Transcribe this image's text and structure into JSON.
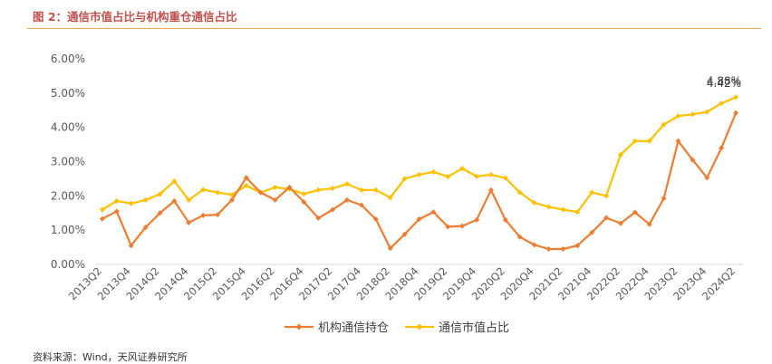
{
  "figure": {
    "title": "图 2：通信市值占比与机构重仓通信占比",
    "source": "资料来源：Wind，天风证券研究所"
  },
  "colors": {
    "title": "#c0504d",
    "rule": "#f0a848",
    "holdings_series": "#ed7d31",
    "market_cap_series": "#ffc000",
    "axis_text": "#595959"
  },
  "chart_data": {
    "type": "line",
    "title": "",
    "xlabel": "",
    "ylabel": "",
    "ylim": [
      0,
      0.06
    ],
    "yticks": [
      "0.00%",
      "1.00%",
      "2.00%",
      "3.00%",
      "4.00%",
      "5.00%",
      "6.00%"
    ],
    "grid": false,
    "legend_position": "bottom",
    "x": [
      "2013Q2",
      "2013Q3",
      "2013Q4",
      "2014Q1",
      "2014Q2",
      "2014Q3",
      "2014Q4",
      "2015Q1",
      "2015Q2",
      "2015Q3",
      "2015Q4",
      "2016Q1",
      "2016Q2",
      "2016Q3",
      "2016Q4",
      "2017Q1",
      "2017Q2",
      "2017Q3",
      "2017Q4",
      "2018Q1",
      "2018Q2",
      "2018Q3",
      "2018Q4",
      "2019Q1",
      "2019Q2",
      "2019Q3",
      "2019Q4",
      "2020Q1",
      "2020Q2",
      "2020Q3",
      "2020Q4",
      "2021Q1",
      "2021Q2",
      "2021Q3",
      "2021Q4",
      "2022Q1",
      "2022Q2",
      "2022Q3",
      "2022Q4",
      "2023Q1",
      "2023Q2",
      "2023Q3",
      "2023Q4",
      "2024Q1",
      "2024Q2"
    ],
    "xticks_shown": [
      "2013Q2",
      "2013Q4",
      "2014Q2",
      "2014Q4",
      "2015Q2",
      "2015Q4",
      "2016Q2",
      "2016Q4",
      "2017Q2",
      "2017Q4",
      "2018Q2",
      "2018Q4",
      "2019Q2",
      "2019Q4",
      "2020Q2",
      "2020Q4",
      "2021Q2",
      "2021Q4",
      "2022Q2",
      "2022Q4",
      "2023Q2",
      "2023Q4",
      "2024Q2"
    ],
    "series": [
      {
        "name": "机构通信持仓",
        "marker": "diamond",
        "values": [
          0.0133,
          0.0155,
          0.0055,
          0.0108,
          0.015,
          0.0185,
          0.0122,
          0.0143,
          0.0145,
          0.0188,
          0.0253,
          0.021,
          0.0188,
          0.0225,
          0.0182,
          0.0135,
          0.016,
          0.0188,
          0.0173,
          0.0132,
          0.0047,
          0.0088,
          0.0132,
          0.0153,
          0.011,
          0.0112,
          0.013,
          0.0217,
          0.013,
          0.008,
          0.0057,
          0.0045,
          0.0045,
          0.0055,
          0.0093,
          0.0136,
          0.012,
          0.0152,
          0.0117,
          0.0193,
          0.036,
          0.0305,
          0.0253,
          0.034,
          0.0442
        ]
      },
      {
        "name": "通信市值占比",
        "marker": "diamond",
        "values": [
          0.016,
          0.0185,
          0.0178,
          0.0188,
          0.0205,
          0.0243,
          0.0188,
          0.0218,
          0.021,
          0.0203,
          0.023,
          0.021,
          0.0225,
          0.022,
          0.0206,
          0.0217,
          0.0222,
          0.0235,
          0.0217,
          0.0217,
          0.0195,
          0.025,
          0.0262,
          0.027,
          0.0256,
          0.028,
          0.0257,
          0.0262,
          0.0252,
          0.021,
          0.018,
          0.0168,
          0.016,
          0.0153,
          0.021,
          0.02,
          0.032,
          0.036,
          0.036,
          0.0408,
          0.0433,
          0.0438,
          0.0445,
          0.047,
          0.0488
        ]
      }
    ],
    "annotations": [
      {
        "text": "4.88%",
        "series": "通信市值占比",
        "x": "2024Q2"
      },
      {
        "text": "4.42%",
        "series": "机构通信持仓",
        "x": "2024Q2"
      }
    ]
  }
}
